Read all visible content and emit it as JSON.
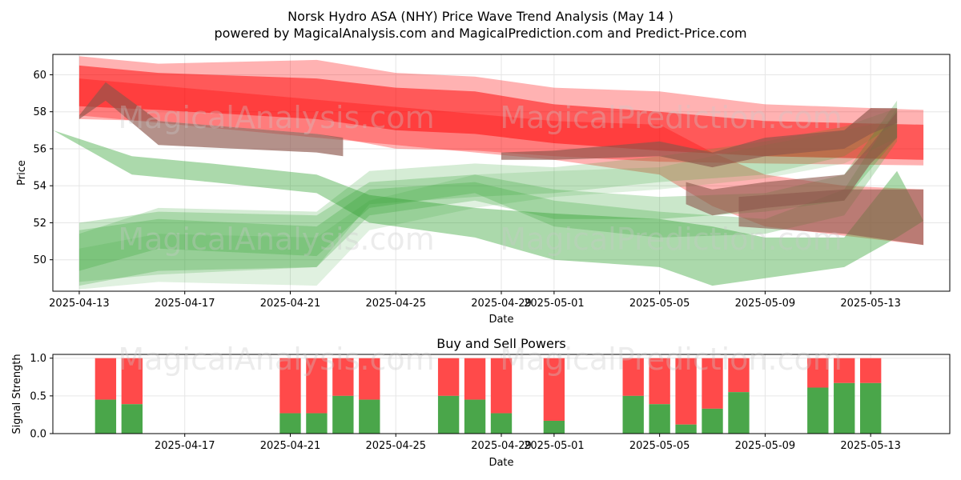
{
  "title": "Norsk Hydro ASA (NHY) Price Wave Trend Analysis (May 14 )",
  "subtitle": "powered by MagicalAnalysis.com and MagicalPrediction.com and Predict-Price.com",
  "watermarks": [
    "MagicalAnalysis.com",
    "MagicalPrediction.com"
  ],
  "chart_data": [
    {
      "type": "area",
      "xlabel": "Date",
      "ylabel": "Price",
      "xlim": [
        "2025-04-12",
        "2025-05-16"
      ],
      "ylim": [
        48.3,
        61.1
      ],
      "xticks": [
        "2025-04-13",
        "2025-04-17",
        "2025-04-21",
        "2025-04-25",
        "2025-04-29",
        "2025-05-01",
        "2025-05-05",
        "2025-05-09",
        "2025-05-13"
      ],
      "yticks": [
        50,
        52,
        54,
        56,
        58,
        60
      ],
      "grid": true,
      "colors": {
        "green": "#2ca02c",
        "red": "#ff0000",
        "brown": "#8c564b"
      },
      "series": [
        {
          "color": "red",
          "opacity": 0.3,
          "x": [
            "2025-04-13",
            "2025-04-16",
            "2025-04-22",
            "2025-04-25",
            "2025-04-28",
            "2025-05-01",
            "2025-05-05",
            "2025-05-09",
            "2025-05-15"
          ],
          "upper": [
            61.0,
            60.6,
            60.8,
            60.1,
            59.9,
            59.3,
            59.1,
            58.4,
            58.1
          ],
          "lower": [
            57.6,
            57.5,
            56.8,
            56.0,
            55.9,
            55.6,
            55.3,
            55.2,
            55.1
          ]
        },
        {
          "color": "red",
          "opacity": 0.5,
          "x": [
            "2025-04-13",
            "2025-04-16",
            "2025-04-22",
            "2025-04-25",
            "2025-04-28",
            "2025-05-01",
            "2025-05-05",
            "2025-05-09",
            "2025-05-15"
          ],
          "upper": [
            60.5,
            60.1,
            59.8,
            59.3,
            59.1,
            58.4,
            58.0,
            57.5,
            57.3
          ],
          "lower": [
            58.3,
            58.1,
            57.6,
            57.0,
            56.8,
            56.3,
            55.9,
            55.6,
            55.4
          ]
        },
        {
          "color": "red",
          "opacity": 0.3,
          "x": [
            "2025-04-13",
            "2025-05-01",
            "2025-05-05",
            "2025-05-07",
            "2025-05-09",
            "2025-05-12",
            "2025-05-15"
          ],
          "upper": [
            59.8,
            57.5,
            57.3,
            55.8,
            54.6,
            54.0,
            53.8
          ],
          "lower": [
            57.8,
            55.4,
            54.6,
            52.9,
            51.8,
            51.3,
            50.8
          ]
        },
        {
          "color": "green",
          "opacity": 0.4,
          "x": [
            "2025-04-12",
            "2025-04-15",
            "2025-04-18",
            "2025-04-22",
            "2025-04-24",
            "2025-04-28",
            "2025-05-01",
            "2025-05-05",
            "2025-05-07",
            "2025-05-09",
            "2025-05-12",
            "2025-05-14",
            "2025-05-15"
          ],
          "upper": [
            57.0,
            55.6,
            55.2,
            54.6,
            53.5,
            52.8,
            52.5,
            52.2,
            51.8,
            51.2,
            51.2,
            54.8,
            52.1
          ],
          "lower": [
            57.0,
            54.6,
            54.2,
            53.6,
            52.0,
            51.2,
            50.0,
            49.6,
            48.6,
            49.0,
            49.6,
            51.2,
            52.1
          ]
        },
        {
          "color": "green",
          "opacity": 0.25,
          "x": [
            "2025-04-13",
            "2025-04-16",
            "2025-04-22",
            "2025-04-24",
            "2025-04-28",
            "2025-05-01",
            "2025-05-05",
            "2025-05-09",
            "2025-05-12",
            "2025-05-14"
          ],
          "upper": [
            52.0,
            52.6,
            52.4,
            54.2,
            54.6,
            53.8,
            53.4,
            53.6,
            54.6,
            58.6
          ],
          "lower": [
            48.6,
            49.4,
            49.6,
            52.4,
            53.2,
            52.2,
            52.2,
            52.6,
            53.2,
            56.6
          ]
        },
        {
          "color": "green",
          "opacity": 0.25,
          "x": [
            "2025-04-13",
            "2025-04-16",
            "2025-04-22",
            "2025-04-24",
            "2025-04-28",
            "2025-05-01",
            "2025-05-05",
            "2025-05-09",
            "2025-05-12",
            "2025-05-14"
          ],
          "upper": [
            51.6,
            52.2,
            51.8,
            53.8,
            54.2,
            53.2,
            52.6,
            52.2,
            53.8,
            58.2
          ],
          "lower": [
            49.4,
            50.6,
            50.2,
            52.8,
            53.6,
            51.8,
            51.2,
            51.4,
            52.4,
            56.4
          ]
        },
        {
          "color": "green",
          "opacity": 0.2,
          "x": [
            "2025-04-13",
            "2025-04-16",
            "2025-04-22",
            "2025-04-24",
            "2025-04-28",
            "2025-05-01",
            "2025-05-05",
            "2025-05-09",
            "2025-05-12",
            "2025-05-14"
          ],
          "upper": [
            51.4,
            52.8,
            52.6,
            54.8,
            55.2,
            55.0,
            55.6,
            56.4,
            57.2,
            58.2
          ],
          "lower": [
            48.8,
            49.2,
            49.6,
            53.0,
            53.4,
            53.6,
            54.2,
            54.6,
            55.6,
            57.4
          ]
        },
        {
          "color": "green",
          "opacity": 0.15,
          "x": [
            "2025-04-13",
            "2025-04-16",
            "2025-04-22",
            "2025-04-24",
            "2025-04-28",
            "2025-05-01",
            "2025-05-05",
            "2025-05-09",
            "2025-05-12",
            "2025-05-14"
          ],
          "upper": [
            50.6,
            51.4,
            51.2,
            53.2,
            54.6,
            54.8,
            55.0,
            56.2,
            57.0,
            57.6
          ],
          "lower": [
            48.4,
            48.8,
            48.6,
            51.6,
            52.8,
            53.4,
            53.8,
            54.4,
            55.2,
            56.6
          ]
        },
        {
          "color": "brown",
          "opacity": 0.65,
          "x": [
            "2025-04-13",
            "2025-04-14",
            "2025-04-16",
            "2025-04-22",
            "2025-04-23"
          ],
          "upper": [
            57.8,
            59.6,
            57.5,
            56.8,
            56.6
          ],
          "lower": [
            57.6,
            58.6,
            56.2,
            55.8,
            55.6
          ]
        },
        {
          "color": "brown",
          "opacity": 0.65,
          "x": [
            "2025-04-29",
            "2025-05-01",
            "2025-05-05",
            "2025-05-07",
            "2025-05-09",
            "2025-05-12",
            "2025-05-13",
            "2025-05-14"
          ],
          "upper": [
            55.8,
            55.9,
            56.4,
            55.8,
            56.6,
            57.0,
            58.2,
            58.2
          ],
          "lower": [
            55.4,
            55.4,
            55.6,
            55.0,
            55.6,
            56.0,
            56.8,
            57.4
          ]
        },
        {
          "color": "brown",
          "opacity": 0.6,
          "x": [
            "2025-05-06",
            "2025-05-07",
            "2025-05-09",
            "2025-05-12",
            "2025-05-13",
            "2025-05-14"
          ],
          "upper": [
            54.2,
            53.8,
            54.2,
            54.6,
            56.2,
            58.0
          ],
          "lower": [
            53.0,
            52.4,
            52.8,
            53.2,
            55.2,
            56.6
          ]
        },
        {
          "color": "brown",
          "opacity": 0.6,
          "x": [
            "2025-05-08",
            "2025-05-12",
            "2025-05-15"
          ],
          "upper": [
            53.4,
            53.8,
            53.8
          ],
          "lower": [
            51.8,
            51.4,
            50.8
          ]
        }
      ]
    },
    {
      "type": "bar",
      "title": "Buy and Sell Powers",
      "xlabel": "Date",
      "ylabel": "Signal Strength",
      "ylim": [
        0,
        1.05
      ],
      "yticks": [
        "0.0",
        "0.5",
        "1.0"
      ],
      "xticks": [
        "2025-04-17",
        "2025-04-21",
        "2025-04-25",
        "2025-04-29",
        "2025-05-01",
        "2025-05-05",
        "2025-05-09",
        "2025-05-13"
      ],
      "grid": true,
      "colors": {
        "buy": "#4aa64a",
        "sell": "#ff4a4a"
      },
      "series": [
        {
          "name": "buy",
          "color": "buy"
        },
        {
          "name": "sell",
          "color": "sell"
        }
      ],
      "x": [
        "2025-04-14",
        "2025-04-15",
        "2025-04-21",
        "2025-04-22",
        "2025-04-23",
        "2025-04-24",
        "2025-04-27",
        "2025-04-28",
        "2025-04-29",
        "2025-05-01",
        "2025-05-04",
        "2025-05-05",
        "2025-05-06",
        "2025-05-07",
        "2025-05-08",
        "2025-05-11",
        "2025-05-12",
        "2025-05-13"
      ],
      "buy": [
        0.45,
        0.39,
        0.27,
        0.27,
        0.5,
        0.45,
        0.5,
        0.45,
        0.27,
        0.17,
        0.5,
        0.39,
        0.12,
        0.33,
        0.55,
        0.61,
        0.67,
        0.67
      ]
    }
  ]
}
